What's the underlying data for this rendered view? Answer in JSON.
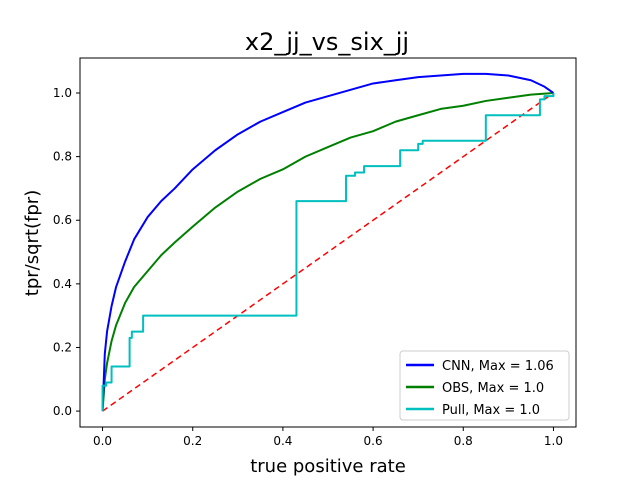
{
  "chart_data": {
    "type": "line",
    "title": "x2_jj_vs_six_jj",
    "xlabel": "true positive rate",
    "ylabel": "tpr/sqrt(fpr)",
    "xlim": [
      -0.05,
      1.05
    ],
    "ylim": [
      -0.05,
      1.11
    ],
    "xticks": [
      0.0,
      0.2,
      0.4,
      0.6,
      0.8,
      1.0
    ],
    "yticks": [
      0.0,
      0.2,
      0.4,
      0.6,
      0.8,
      1.0
    ],
    "xtick_labels": [
      "0.0",
      "0.2",
      "0.4",
      "0.6",
      "0.8",
      "1.0"
    ],
    "ytick_labels": [
      "0.0",
      "0.2",
      "0.4",
      "0.6",
      "0.8",
      "1.0"
    ],
    "grid": false,
    "legend_position": "lower-right",
    "series": [
      {
        "name": "CNN, Max = 1.06",
        "color": "#0000ff",
        "style": "solid",
        "x": [
          0.0,
          0.005,
          0.01,
          0.02,
          0.03,
          0.05,
          0.07,
          0.1,
          0.13,
          0.16,
          0.2,
          0.25,
          0.3,
          0.35,
          0.4,
          0.45,
          0.5,
          0.55,
          0.6,
          0.65,
          0.7,
          0.75,
          0.8,
          0.85,
          0.9,
          0.95,
          0.98,
          1.0
        ],
        "y": [
          0.0,
          0.18,
          0.25,
          0.33,
          0.39,
          0.47,
          0.54,
          0.61,
          0.66,
          0.7,
          0.76,
          0.82,
          0.87,
          0.91,
          0.94,
          0.97,
          0.99,
          1.01,
          1.03,
          1.04,
          1.05,
          1.055,
          1.06,
          1.06,
          1.055,
          1.04,
          1.02,
          1.0
        ]
      },
      {
        "name": "OBS, Max = 1.0",
        "color": "#008000",
        "style": "solid",
        "x": [
          0.0,
          0.005,
          0.01,
          0.02,
          0.03,
          0.05,
          0.07,
          0.1,
          0.13,
          0.16,
          0.2,
          0.25,
          0.3,
          0.35,
          0.4,
          0.45,
          0.5,
          0.55,
          0.6,
          0.65,
          0.7,
          0.75,
          0.8,
          0.85,
          0.9,
          0.95,
          1.0
        ],
        "y": [
          0.0,
          0.1,
          0.15,
          0.22,
          0.27,
          0.34,
          0.39,
          0.44,
          0.49,
          0.53,
          0.58,
          0.64,
          0.69,
          0.73,
          0.76,
          0.8,
          0.83,
          0.86,
          0.88,
          0.91,
          0.93,
          0.95,
          0.96,
          0.975,
          0.985,
          0.995,
          1.0
        ]
      },
      {
        "name": "Pull, Max = 1.0",
        "color": "#00bfbf",
        "style": "solid",
        "x": [
          0.0,
          0.0,
          0.008,
          0.008,
          0.02,
          0.02,
          0.06,
          0.06,
          0.065,
          0.065,
          0.09,
          0.09,
          0.43,
          0.43,
          0.54,
          0.54,
          0.56,
          0.56,
          0.58,
          0.58,
          0.66,
          0.66,
          0.7,
          0.7,
          0.71,
          0.71,
          0.85,
          0.85,
          0.97,
          0.97,
          0.98,
          0.98,
          1.0,
          1.0
        ],
        "y": [
          0.0,
          0.08,
          0.08,
          0.09,
          0.09,
          0.14,
          0.14,
          0.23,
          0.23,
          0.25,
          0.25,
          0.3,
          0.3,
          0.66,
          0.66,
          0.74,
          0.74,
          0.75,
          0.75,
          0.77,
          0.77,
          0.82,
          0.82,
          0.84,
          0.84,
          0.85,
          0.85,
          0.93,
          0.93,
          0.98,
          0.98,
          0.99,
          0.99,
          1.0
        ]
      },
      {
        "color": "#ff0000",
        "style": "dashed",
        "x": [
          0.0,
          1.0
        ],
        "y": [
          0.0,
          1.0
        ]
      }
    ]
  }
}
